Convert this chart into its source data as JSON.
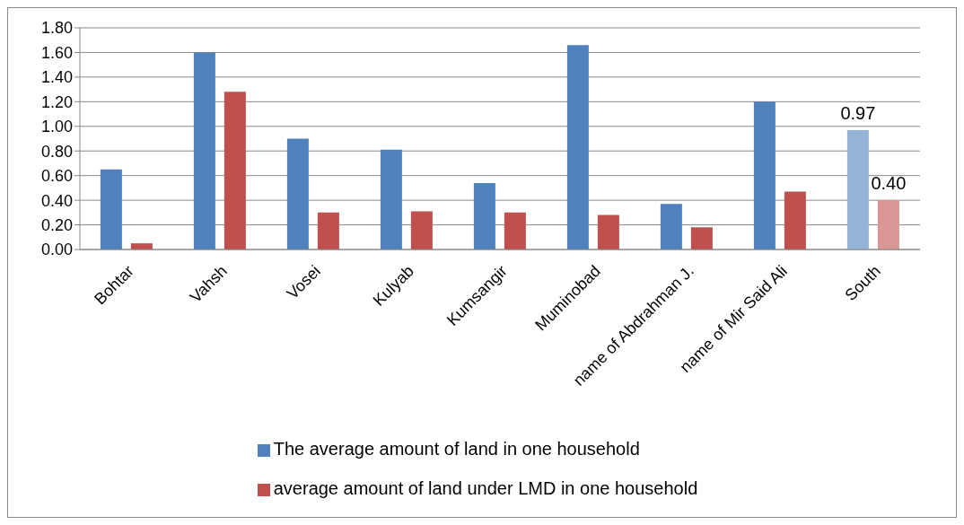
{
  "chart_data": {
    "type": "bar",
    "categories": [
      "Bohtar",
      "Vahsh",
      "Vosei",
      "Kulyab",
      "Kumsangir",
      "Muminobad",
      "name of Abdrahman J.",
      "name of Mir Said Ali",
      "South"
    ],
    "series": [
      {
        "name": "The average amount of land in one household",
        "color": "#4f81bd",
        "colors": [
          "#4f81bd",
          "#4f81bd",
          "#4f81bd",
          "#4f81bd",
          "#4f81bd",
          "#4f81bd",
          "#4f81bd",
          "#4f81bd",
          "#95b3d7"
        ],
        "values": [
          0.65,
          1.6,
          0.9,
          0.81,
          0.54,
          1.66,
          0.37,
          1.2,
          0.97
        ],
        "value_labels": [
          null,
          null,
          null,
          null,
          null,
          null,
          null,
          null,
          "0.97"
        ]
      },
      {
        "name": "average amount of land under LMD in one household",
        "color": "#c0504d",
        "colors": [
          "#c0504d",
          "#c0504d",
          "#c0504d",
          "#c0504d",
          "#c0504d",
          "#c0504d",
          "#c0504d",
          "#c0504d",
          "#d99694"
        ],
        "values": [
          0.05,
          1.28,
          0.3,
          0.31,
          0.3,
          0.28,
          0.18,
          0.47,
          0.4
        ],
        "value_labels": [
          null,
          null,
          null,
          null,
          null,
          null,
          null,
          null,
          "0.40"
        ]
      }
    ],
    "ylim": [
      0,
      1.8
    ],
    "yticks": [
      {
        "value": 0,
        "label": "0.00"
      },
      {
        "value": 0.2,
        "label": "0.20"
      },
      {
        "value": 0.4,
        "label": "0.40"
      },
      {
        "value": 0.6,
        "label": "0.60"
      },
      {
        "value": 0.8,
        "label": "0.80"
      },
      {
        "value": 1,
        "label": "1.00"
      },
      {
        "value": 1.2,
        "label": "1.20"
      },
      {
        "value": 1.4,
        "label": "1.40"
      },
      {
        "value": 1.6,
        "label": "1.60"
      },
      {
        "value": 1.8,
        "label": "1.80"
      }
    ],
    "grid": "y",
    "legend": "bottom"
  }
}
